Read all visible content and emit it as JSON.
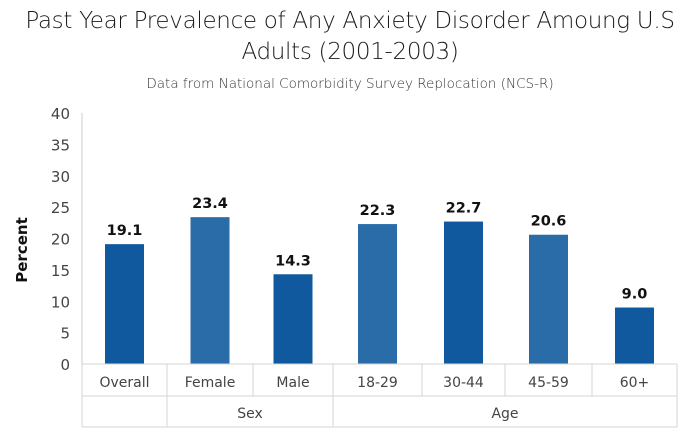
{
  "chart_data": {
    "type": "bar",
    "title": "Past Year Prevalence of Any Anxiety Disorder Amoung U.S Adults (2001-2003)",
    "subtitle": "Data from National Comorbidity Survey Replocation (NCS-R)",
    "xlabel": "",
    "ylabel": "Percent",
    "ylim": [
      0,
      40
    ],
    "yticks": [
      0,
      5,
      10,
      15,
      20,
      25,
      30,
      35,
      40
    ],
    "grid": false,
    "categories": [
      "Overall",
      "Female",
      "Male",
      "18-29",
      "30-44",
      "45-59",
      "60+"
    ],
    "values": [
      19.1,
      23.4,
      14.3,
      22.3,
      22.7,
      20.6,
      9.0
    ],
    "data_labels": [
      "19.1",
      "23.4",
      "14.3",
      "22.3",
      "22.7",
      "20.6",
      "9.0"
    ],
    "bar_colors": [
      "#11599e",
      "#2a6ca8",
      "#11599e",
      "#2a6ca8",
      "#11599e",
      "#2a6ca8",
      "#11599e"
    ],
    "groups": [
      {
        "label": "",
        "categories": [
          "Overall"
        ]
      },
      {
        "label": "Sex",
        "categories": [
          "Female",
          "Male"
        ]
      },
      {
        "label": "Age",
        "categories": [
          "18-29",
          "30-44",
          "45-59",
          "60+"
        ]
      }
    ]
  }
}
